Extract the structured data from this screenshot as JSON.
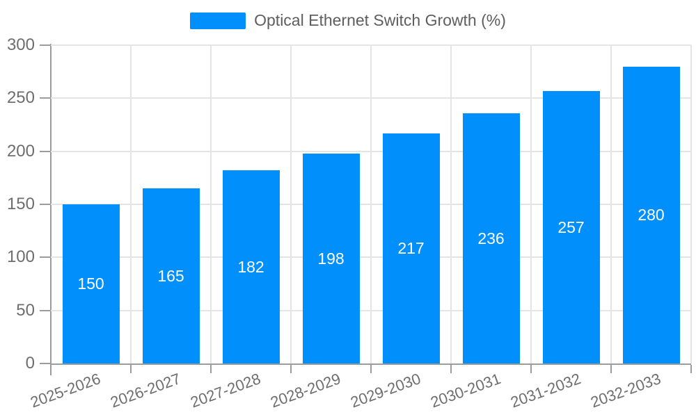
{
  "chart_data": {
    "type": "bar",
    "title": "Optical Ethernet Switch Growth (%)",
    "categories": [
      "2025-2026",
      "2026-2027",
      "2027-2028",
      "2028-2029",
      "2029-2030",
      "2030-2031",
      "2031-2032",
      "2032-2033"
    ],
    "series": [
      {
        "name": "Optical Ethernet Switch Growth (%)",
        "values": [
          150,
          165,
          182,
          198,
          217,
          236,
          257,
          280
        ]
      }
    ],
    "xlabel": "",
    "ylabel": "",
    "ylim": [
      0,
      300
    ],
    "yticks": [
      0,
      50,
      100,
      150,
      200,
      250,
      300
    ],
    "ytick_labels": [
      "0",
      "50",
      "100",
      "150",
      "200",
      "250",
      "300"
    ],
    "grid": true,
    "legend_position": "top",
    "x_label_rotation_deg": -20,
    "bar_value_labels_shown": true,
    "colors": {
      "bar": "#008FFB",
      "bar_label": "#FFFFFF",
      "grid_line": "#E4E4E4",
      "axis_line": "#9C9C9C",
      "axis_text": "#6E6E6E",
      "legend_text": "#5E5E5E"
    }
  }
}
